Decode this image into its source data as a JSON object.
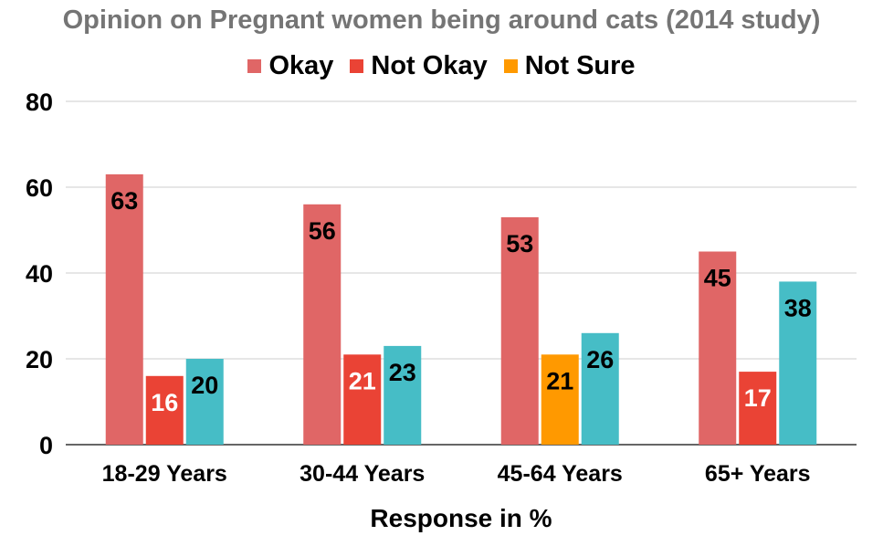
{
  "chart_data": {
    "type": "bar",
    "title": "Opinion on Pregnant women being around cats (2014 study)",
    "xlabel": "Response in  %",
    "ylabel": "",
    "ylim": [
      0,
      80
    ],
    "yticks": [
      0,
      20,
      40,
      60,
      80
    ],
    "grid": true,
    "legend_position": "top",
    "categories": [
      "18-29 Years",
      "30-44 Years",
      "45-64 Years",
      "65+ Years"
    ],
    "legend": [
      {
        "label": "Okay",
        "color": "#e06666"
      },
      {
        "label": "Not Okay",
        "color": "#ea4335"
      },
      {
        "label": "Not Sure",
        "color": "#ff9900"
      }
    ],
    "series": [
      {
        "name": "Okay",
        "values": [
          63,
          56,
          53,
          45
        ],
        "colors": [
          "#e06666",
          "#e06666",
          "#e06666",
          "#e06666"
        ],
        "label_colors": [
          "#000000",
          "#000000",
          "#000000",
          "#000000"
        ]
      },
      {
        "name": "Not Okay",
        "values": [
          16,
          21,
          21,
          17
        ],
        "colors": [
          "#ea4335",
          "#ea4335",
          "#ff9900",
          "#ea4335"
        ],
        "label_colors": [
          "#ffffff",
          "#ffffff",
          "#000000",
          "#ffffff"
        ]
      },
      {
        "name": "",
        "values": [
          20,
          23,
          26,
          38
        ],
        "colors": [
          "#46bdc6",
          "#46bdc6",
          "#46bdc6",
          "#46bdc6"
        ],
        "label_colors": [
          "#000000",
          "#000000",
          "#000000",
          "#000000"
        ]
      }
    ]
  }
}
